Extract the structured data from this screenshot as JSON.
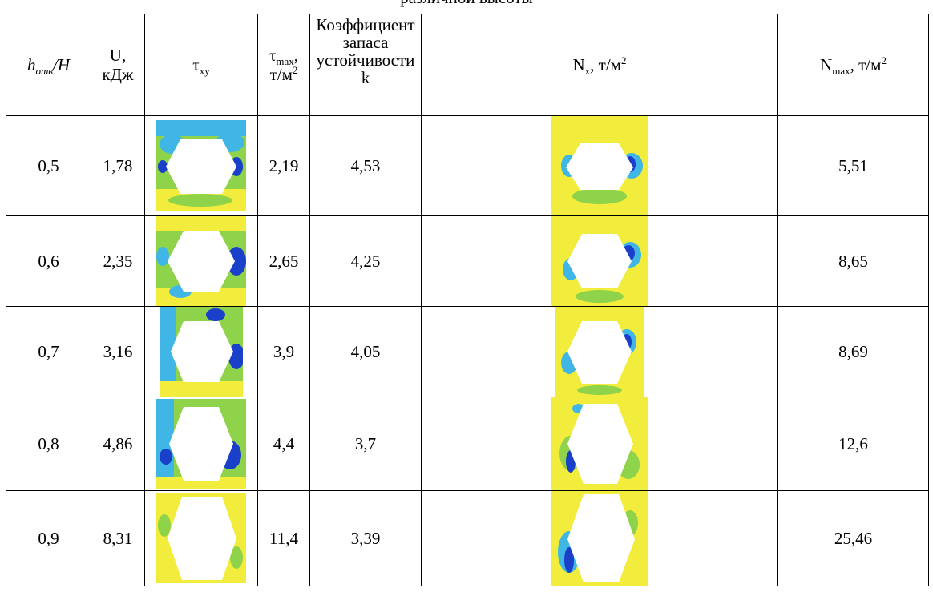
{
  "caption": "различной высоты",
  "header": {
    "col1_h": "h",
    "col1_sub": "отв",
    "col1_rest": "/H",
    "col2_line1": "U,",
    "col2_line2": "кДж",
    "col3_sym": "τ",
    "col3_sub": "xy",
    "col4_sym": "τ",
    "col4_sub": "max",
    "col4_comma": ",",
    "col4_unit": "т/м",
    "col4_sup": "2",
    "col5_l1": "Коэффициент",
    "col5_l2": "запаса",
    "col5_l3": "устойчивости",
    "col5_l4": "k",
    "col6_sym": "N",
    "col6_sub": "x",
    "col6_unit": ", т/м",
    "col6_sup": "2",
    "col7_sym": "N",
    "col7_sub": "max",
    "col7_unit": ", т/м",
    "col7_sup": "2"
  },
  "rows": [
    {
      "ratio": "0,5",
      "u": "1,78",
      "tau_max": "2,19",
      "k": "4,53",
      "n_max": "5,51"
    },
    {
      "ratio": "0,6",
      "u": "2,35",
      "tau_max": "2,65",
      "k": "4,25",
      "n_max": "8,65"
    },
    {
      "ratio": "0,7",
      "u": "3,16",
      "tau_max": "3,9",
      "k": "4,05",
      "n_max": "8,69"
    },
    {
      "ratio": "0,8",
      "u": "4,86",
      "tau_max": "4,4",
      "k": "3,7",
      "n_max": "12,6"
    },
    {
      "ratio": "0,9",
      "u": "8,31",
      "tau_max": "11,4",
      "k": "3,39",
      "n_max": "25,46"
    }
  ],
  "colors": {
    "field_yellow": "#f2ec3c",
    "field_green": "#8fd34a",
    "field_cyan": "#3fb6e6",
    "field_blue": "#1a3fc8"
  }
}
